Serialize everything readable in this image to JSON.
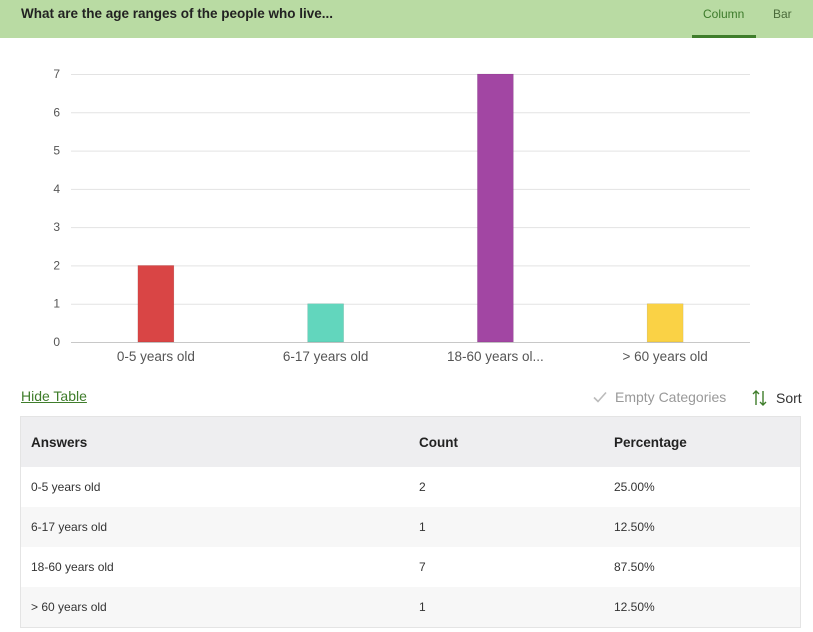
{
  "header": {
    "title": "What are the age ranges of the people who live...",
    "tabs": [
      {
        "label": "Column",
        "active": true
      },
      {
        "label": "Bar",
        "active": false
      }
    ],
    "background": "#b9dba3",
    "accent": "#3f7d2b"
  },
  "chart_data": {
    "type": "bar",
    "categories": [
      "0-5 years old",
      "6-17 years old",
      "18-60 years ol...",
      "> 60 years old"
    ],
    "values": [
      2,
      1,
      7,
      1
    ],
    "colors": [
      "#d94545",
      "#62d6bd",
      "#a246a3",
      "#fad245"
    ],
    "ylim": [
      0,
      7
    ],
    "yticks": [
      0,
      1,
      2,
      3,
      4,
      5,
      6,
      7
    ],
    "grid": true,
    "title": "",
    "xlabel": "",
    "ylabel": ""
  },
  "controls": {
    "hide_table": "Hide Table",
    "empty_categories": "Empty Categories",
    "sort": "Sort"
  },
  "table": {
    "headers": [
      "Answers",
      "Count",
      "Percentage"
    ],
    "rows": [
      [
        "0-5 years old",
        "2",
        "25.00%"
      ],
      [
        "6-17 years old",
        "1",
        "12.50%"
      ],
      [
        "18-60 years old",
        "7",
        "87.50%"
      ],
      [
        "> 60 years old",
        "1",
        "12.50%"
      ]
    ]
  }
}
